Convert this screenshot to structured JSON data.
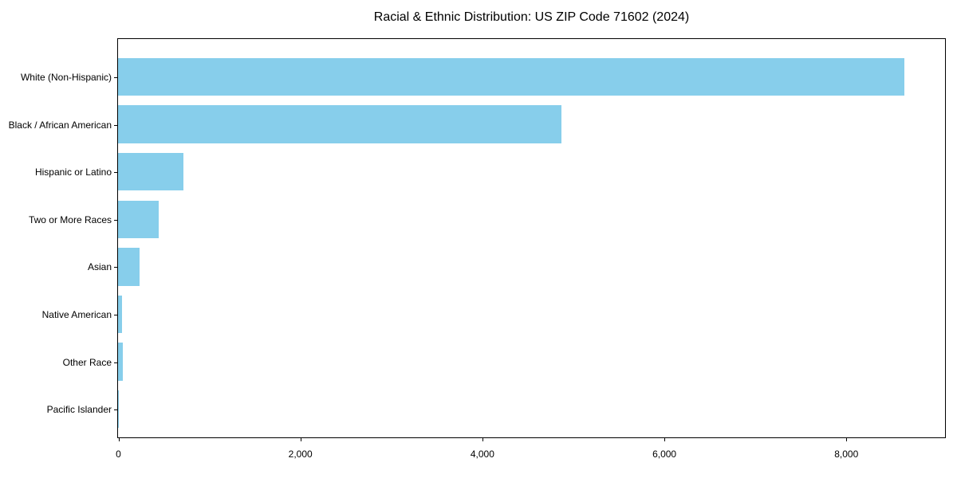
{
  "chart_data": {
    "type": "bar",
    "orientation": "horizontal",
    "title": "Racial & Ethnic Distribution: US ZIP Code 71602 (2024)",
    "categories": [
      "White (Non-Hispanic)",
      "Black / African American",
      "Hispanic or Latino",
      "Two or More Races",
      "Asian",
      "Native American",
      "Other Race",
      "Pacific Islander"
    ],
    "values": [
      8640,
      4870,
      720,
      445,
      240,
      48,
      55,
      9
    ],
    "xlabel": "",
    "ylabel": "",
    "xlim": [
      0,
      9080
    ],
    "x_ticks": [
      0,
      2000,
      4000,
      6000,
      8000
    ],
    "x_tick_labels": [
      "0",
      "2,000",
      "4,000",
      "6,000",
      "8,000"
    ],
    "bar_color": "#87CEEB",
    "axis_color": "#000000",
    "plot_background": "#ffffff",
    "grid": false,
    "legend": false
  }
}
